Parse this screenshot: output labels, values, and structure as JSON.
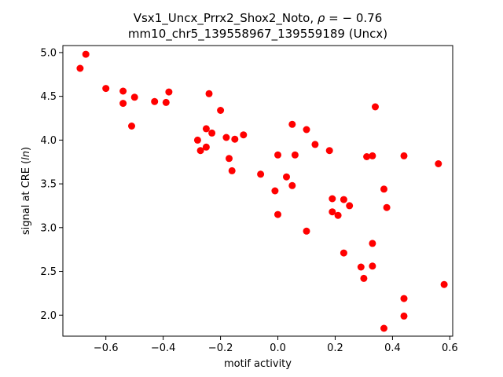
{
  "chart_data": {
    "type": "scatter",
    "title_line1_prefix": "Vsx1_Uncx_Prrx2_Shox2_Noto, ",
    "title_rho_symbol": "ρ",
    "title_rho_value": " = − 0.76",
    "title_line2": "mm10_chr5_139558967_139559189 (Uncx)",
    "xlabel": "motif activity",
    "ylabel_prefix": "signal at CRE (",
    "ylabel_italic": "ln",
    "ylabel_suffix": ")",
    "xlim": [
      -0.75,
      0.61
    ],
    "ylim": [
      1.76,
      5.08
    ],
    "xticks": [
      -0.6,
      -0.4,
      -0.2,
      0.0,
      0.2,
      0.4,
      0.6
    ],
    "xtick_labels": [
      "−0.6",
      "−0.4",
      "−0.2",
      "0.0",
      "0.2",
      "0.4",
      "0.6"
    ],
    "yticks": [
      2.0,
      2.5,
      3.0,
      3.5,
      4.0,
      4.5,
      5.0
    ],
    "ytick_labels": [
      "2.0",
      "2.5",
      "3.0",
      "3.5",
      "4.0",
      "4.5",
      "5.0"
    ],
    "grid": false,
    "marker_color": "#ff0000",
    "points": [
      {
        "x": -0.69,
        "y": 4.82
      },
      {
        "x": -0.67,
        "y": 4.98
      },
      {
        "x": -0.6,
        "y": 4.59
      },
      {
        "x": -0.54,
        "y": 4.56
      },
      {
        "x": -0.54,
        "y": 4.42
      },
      {
        "x": -0.51,
        "y": 4.16
      },
      {
        "x": -0.5,
        "y": 4.49
      },
      {
        "x": -0.43,
        "y": 4.44
      },
      {
        "x": -0.39,
        "y": 4.43
      },
      {
        "x": -0.38,
        "y": 4.55
      },
      {
        "x": -0.28,
        "y": 4.0
      },
      {
        "x": -0.27,
        "y": 3.88
      },
      {
        "x": -0.25,
        "y": 4.13
      },
      {
        "x": -0.25,
        "y": 3.92
      },
      {
        "x": -0.24,
        "y": 4.53
      },
      {
        "x": -0.23,
        "y": 4.08
      },
      {
        "x": -0.2,
        "y": 4.34
      },
      {
        "x": -0.18,
        "y": 4.03
      },
      {
        "x": -0.17,
        "y": 3.79
      },
      {
        "x": -0.16,
        "y": 3.65
      },
      {
        "x": -0.15,
        "y": 4.01
      },
      {
        "x": -0.12,
        "y": 4.06
      },
      {
        "x": -0.06,
        "y": 3.61
      },
      {
        "x": -0.01,
        "y": 3.42
      },
      {
        "x": 0.0,
        "y": 3.15
      },
      {
        "x": 0.0,
        "y": 3.83
      },
      {
        "x": 0.03,
        "y": 3.58
      },
      {
        "x": 0.05,
        "y": 4.18
      },
      {
        "x": 0.05,
        "y": 3.48
      },
      {
        "x": 0.06,
        "y": 3.83
      },
      {
        "x": 0.1,
        "y": 4.12
      },
      {
        "x": 0.1,
        "y": 2.96
      },
      {
        "x": 0.13,
        "y": 3.95
      },
      {
        "x": 0.18,
        "y": 3.88
      },
      {
        "x": 0.19,
        "y": 3.18
      },
      {
        "x": 0.19,
        "y": 3.33
      },
      {
        "x": 0.21,
        "y": 3.14
      },
      {
        "x": 0.23,
        "y": 2.71
      },
      {
        "x": 0.23,
        "y": 3.32
      },
      {
        "x": 0.25,
        "y": 3.25
      },
      {
        "x": 0.29,
        "y": 2.55
      },
      {
        "x": 0.3,
        "y": 2.42
      },
      {
        "x": 0.31,
        "y": 3.81
      },
      {
        "x": 0.33,
        "y": 3.82
      },
      {
        "x": 0.33,
        "y": 2.82
      },
      {
        "x": 0.33,
        "y": 2.56
      },
      {
        "x": 0.34,
        "y": 4.38
      },
      {
        "x": 0.37,
        "y": 1.85
      },
      {
        "x": 0.37,
        "y": 3.44
      },
      {
        "x": 0.38,
        "y": 3.23
      },
      {
        "x": 0.44,
        "y": 3.82
      },
      {
        "x": 0.44,
        "y": 2.19
      },
      {
        "x": 0.44,
        "y": 1.99
      },
      {
        "x": 0.56,
        "y": 3.73
      },
      {
        "x": 0.58,
        "y": 2.35
      }
    ]
  }
}
